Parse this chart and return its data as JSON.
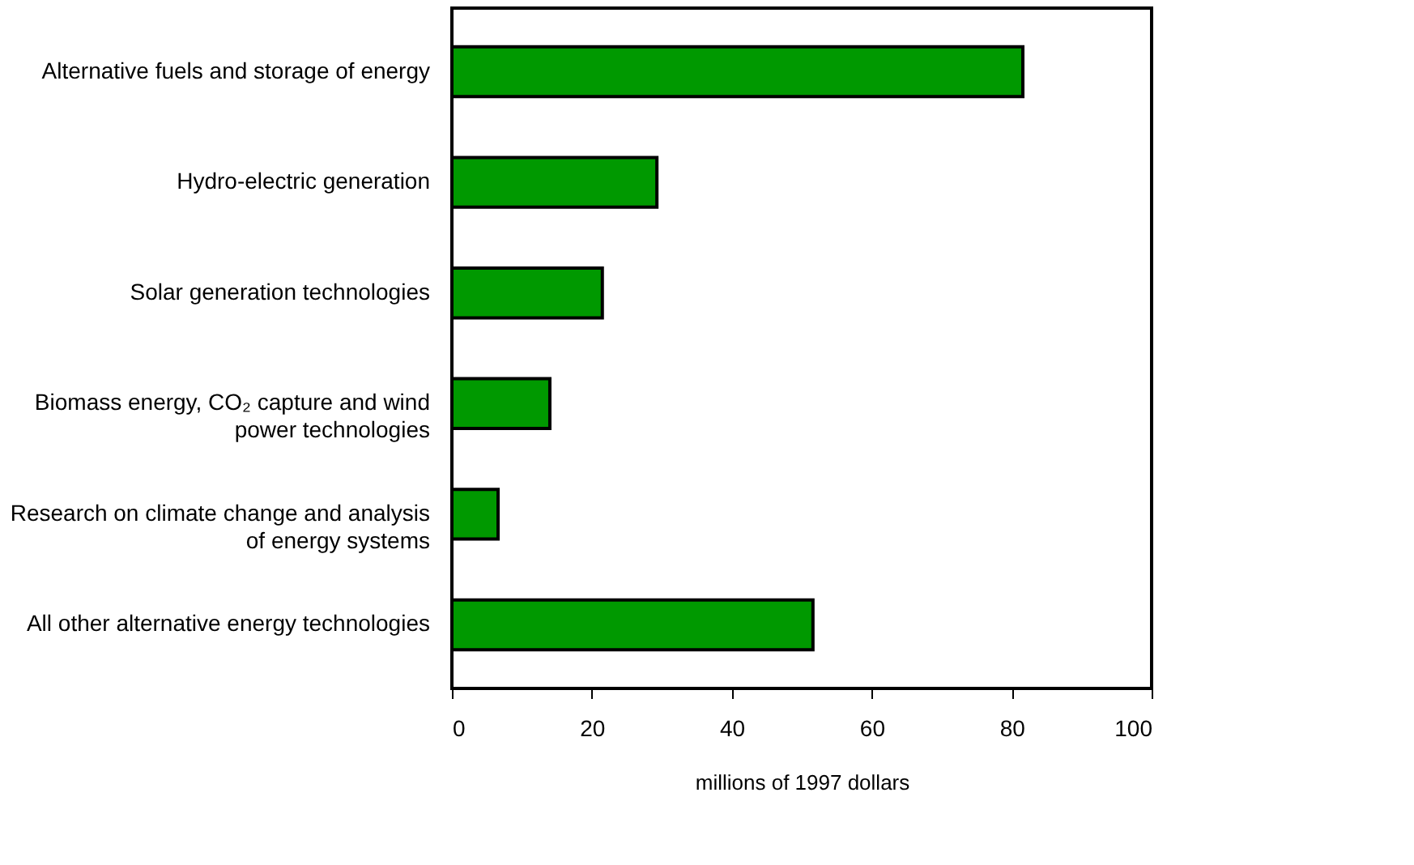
{
  "chart_data": {
    "type": "bar",
    "orientation": "horizontal",
    "categories": [
      "Alternative fuels and storage of energy",
      "Hydro-electric generation",
      "Solar generation technologies",
      "Biomass energy, CO₂ capture and wind power technologies",
      "Research on climate change and analysis of energy systems",
      "All other alternative energy technologies"
    ],
    "values": [
      81.6,
      29.3,
      21.5,
      14.0,
      6.6,
      51.6
    ],
    "color": "#009900",
    "xlabel": "millions of 1997 dollars",
    "xlim": [
      0,
      100
    ],
    "xticks": [
      0,
      20,
      40,
      60,
      80,
      100
    ],
    "grid": false
  }
}
